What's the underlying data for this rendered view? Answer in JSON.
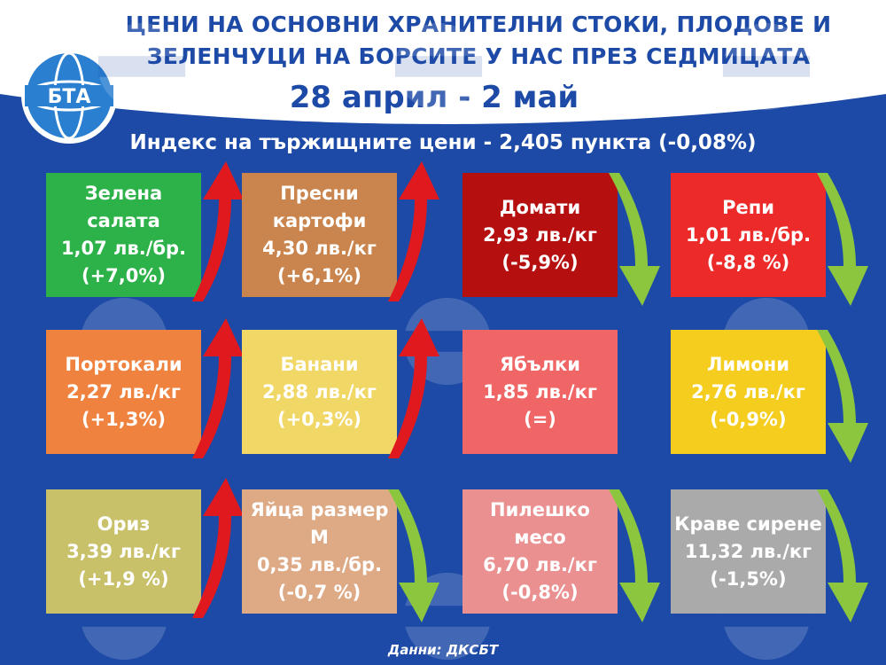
{
  "header": {
    "title_line1": "ЦЕНИ НА ОСНОВНИ ХРАНИТЕЛНИ СТОКИ, ПЛОДОВЕ И",
    "title_line2": "ЗЕЛЕНЧУЦИ НА БОРСИТЕ У НАС ПРЕЗ СЕДМИЦАТА",
    "date_range": "28 април - 2 май",
    "index_text": "Индекс на тържищните цени - 2,405 пункта (-0,08%)"
  },
  "logo": {
    "text": "БТА"
  },
  "items": [
    {
      "name": "Зелена салата",
      "price": "1,07 лв./бр.",
      "change": "(+7,0%)",
      "trend": "up",
      "color": "#2db24a"
    },
    {
      "name": "Пресни картофи",
      "price": "4,30 лв./кг",
      "change": "(+6,1%)",
      "trend": "up",
      "color": "#c9854d"
    },
    {
      "name": "Домати",
      "price": "2,93 лв./кг",
      "change": "(-5,9%)",
      "trend": "down",
      "color": "#b50f0f"
    },
    {
      "name": "Репи",
      "price": "1,01 лв./бр.",
      "change": "(-8,8 %)",
      "trend": "down",
      "color": "#ed2a2a"
    },
    {
      "name": "Портокали",
      "price": "2,27 лв./кг",
      "change": "(+1,3%)",
      "trend": "up",
      "color": "#f08240"
    },
    {
      "name": "Банани",
      "price": "2,88 лв./кг",
      "change": "(+0,3%)",
      "trend": "up",
      "color": "#f1d765"
    },
    {
      "name": "Ябълки",
      "price": "1,85 лв./кг",
      "change": "(=)",
      "trend": "none",
      "color": "#f06565"
    },
    {
      "name": "Лимони",
      "price": "2,76 лв./кг",
      "change": "(-0,9%)",
      "trend": "down",
      "color": "#f4cd1f"
    },
    {
      "name": "Ориз",
      "price": "3,39 лв./кг",
      "change": "(+1,9 %)",
      "trend": "up",
      "color": "#c9c16a"
    },
    {
      "name": "Яйца размер М",
      "price": "0,35 лв./бр.",
      "change": "(-0,7 %)",
      "trend": "down",
      "color": "#deaa86"
    },
    {
      "name": "Пилешко месо",
      "price": "6,70 лв./кг",
      "change": "(-0,8%)",
      "trend": "down",
      "color": "#ea9090"
    },
    {
      "name": "Краве сирене",
      "price": "11,32 лв./кг",
      "change": "(-1,5%)",
      "trend": "down",
      "color": "#aaaaaa"
    }
  ],
  "colors": {
    "up_arrow": "#e0191e",
    "down_arrow": "#8cc63f",
    "background": "#1d4aa6"
  },
  "footer": {
    "source": "Данни: ДКСБТ"
  }
}
